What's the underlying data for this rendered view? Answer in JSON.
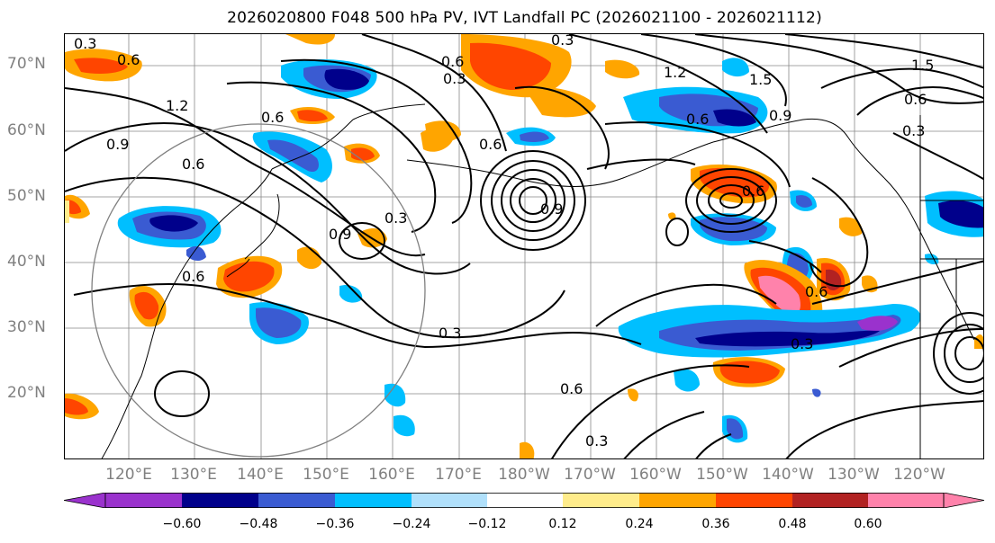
{
  "title": "2026020800 F048 500 hPa PV, IVT Landfall PC (2026021100 - 2026021112)",
  "map": {
    "lat_labels": [
      "70°N",
      "60°N",
      "50°N",
      "40°N",
      "30°N",
      "20°N"
    ],
    "lon_labels": [
      "120°E",
      "130°E",
      "140°E",
      "150°E",
      "160°E",
      "170°E",
      "180°W",
      "170°W",
      "160°W",
      "150°W",
      "140°W",
      "130°W",
      "120°W"
    ],
    "contour_labels": [
      "0.3",
      "0.6",
      "1.2",
      "0.6",
      "0.9",
      "0.6",
      "0.3",
      "0.9",
      "0.3",
      "0.6",
      "0.3",
      "0.6",
      "0.3",
      "1.2",
      "1.5",
      "0.6",
      "0.9",
      "0.6",
      "0.3",
      "1.5",
      "0.6",
      "0.3",
      "0.6",
      "0.3",
      "0.6",
      "0.9",
      "0.6"
    ]
  },
  "colorbar": {
    "tick_labels": [
      "−0.60",
      "−0.48",
      "−0.36",
      "−0.24",
      "−0.12",
      "0.12",
      "0.24",
      "0.36",
      "0.48",
      "0.60"
    ],
    "colors": [
      "#9a32cd",
      "#00008b",
      "#3a5bd2",
      "#00bfff",
      "#b0e0fb",
      "#ffffff",
      "#ffec8b",
      "#ffa500",
      "#ff4500",
      "#b22222",
      "#ff82ab"
    ]
  }
}
